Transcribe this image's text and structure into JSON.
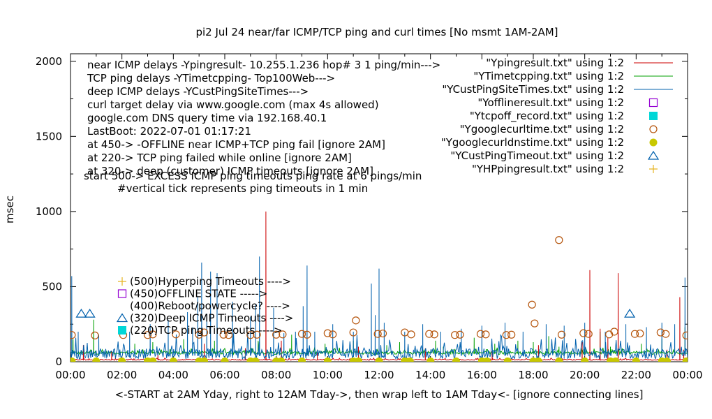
{
  "chart_data": {
    "type": "line",
    "title": "pi2  Jul 24  near/far ICMP/TCP ping and curl times [No msmt 1AM-2AM]",
    "xlabel": "<-START at 2AM Yday, right to 12AM Tday->, then wrap left to 1AM Tday<- [ignore connecting lines]",
    "ylabel": "msec",
    "xlim": [
      0,
      24
    ],
    "ylim": [
      0,
      2050
    ],
    "x_ticks": [
      {
        "v": 0,
        "label": "00:00"
      },
      {
        "v": 2,
        "label": "02:00"
      },
      {
        "v": 4,
        "label": "04:00"
      },
      {
        "v": 6,
        "label": "06:00"
      },
      {
        "v": 8,
        "label": "08:00"
      },
      {
        "v": 10,
        "label": "10:00"
      },
      {
        "v": 12,
        "label": "12:00"
      },
      {
        "v": 14,
        "label": "14:00"
      },
      {
        "v": 16,
        "label": "16:00"
      },
      {
        "v": 18,
        "label": "18:00"
      },
      {
        "v": 20,
        "label": "20:00"
      },
      {
        "v": 22,
        "label": "22:00"
      },
      {
        "v": 24,
        "label": "00:00"
      }
    ],
    "y_ticks": [
      {
        "v": 0,
        "label": "0"
      },
      {
        "v": 500,
        "label": "500"
      },
      {
        "v": 1000,
        "label": "1000"
      },
      {
        "v": 1500,
        "label": "1500"
      },
      {
        "v": 2000,
        "label": "2000"
      }
    ],
    "grid": false,
    "legend_position": "top-right",
    "info_text": [
      "near ICMP delays -Ypingresult- 10.255.1.236 hop# 3 1 ping/min--->",
      "TCP ping delays -YTimetcpping- Top100Web--->",
      "deep ICMP delays -YCustPingSiteTimes--->",
      "curl target delay via www.google.com (max 4s allowed)",
      "google.com DNS query time via 192.168.40.1",
      "LastBoot: 2022-07-01 01:17:21",
      "at 450-> -OFFLINE near ICMP+TCP ping fail [ignore 2AM]",
      "at 220-> TCP ping failed while online [ignore 2AM]",
      "at 320-> deep (customer) ICMP timeouts [ignore 2AM]",
      "start 500-> EXCESS ICMP ping timeouts ping rate at 6 pings/min",
      "#vertical tick represents ping timeouts in 1 min"
    ],
    "marker_key": [
      {
        "label": "(500)Hyperping Timeouts ---->",
        "marker": "plus",
        "color": "#e6b422"
      },
      {
        "label": "(450)OFFLINE STATE ----->",
        "marker": "open-square",
        "color": "#9400d3"
      },
      {
        "label": "(400)Reboot/powercycle? ---->",
        "marker": "none",
        "color": "#000000"
      },
      {
        "label": "(320)Deep ICMP Timeouts ---->",
        "marker": "open-triangle",
        "color": "#0060ad"
      },
      {
        "label": "(220)TCP ping Timeouts ---->",
        "marker": "filled-square",
        "color": "#00d7d7"
      }
    ],
    "series": [
      {
        "name": "\"Ypingresult.txt\" using 1:2",
        "style": "line",
        "color": "#cc0000",
        "baseline": 12,
        "noise": 6,
        "spikes": [
          [
            0.5,
            110
          ],
          [
            1.6,
            70
          ],
          [
            3.4,
            60
          ],
          [
            5.2,
            120
          ],
          [
            6.8,
            90
          ],
          [
            7.6,
            1000
          ],
          [
            8.2,
            140
          ],
          [
            9.6,
            80
          ],
          [
            11.2,
            100
          ],
          [
            13.8,
            90
          ],
          [
            16.4,
            70
          ],
          [
            18.2,
            110
          ],
          [
            19.9,
            130
          ],
          [
            20.2,
            610
          ],
          [
            20.6,
            220
          ],
          [
            20.9,
            160
          ],
          [
            21.3,
            590
          ],
          [
            23.2,
            80
          ],
          [
            23.7,
            430
          ],
          [
            23.85,
            80
          ]
        ]
      },
      {
        "name": "\"YTimetcpping.txt\" using 1:2",
        "style": "line",
        "color": "#00a000",
        "baseline": 55,
        "noise": 20,
        "spikes": [
          [
            0.1,
            150
          ],
          [
            0.9,
            280
          ],
          [
            2.5,
            120
          ],
          [
            3.2,
            130
          ],
          [
            4.4,
            150
          ],
          [
            5.6,
            140
          ],
          [
            6.3,
            100
          ],
          [
            7.3,
            140
          ],
          [
            8.6,
            180
          ],
          [
            9.9,
            120
          ],
          [
            11.0,
            140
          ],
          [
            12.3,
            110
          ],
          [
            12.8,
            130
          ],
          [
            14.2,
            140
          ],
          [
            14.5,
            100
          ],
          [
            15.7,
            160
          ],
          [
            16.5,
            120
          ],
          [
            17.4,
            140
          ],
          [
            18.0,
            130
          ],
          [
            18.6,
            170
          ],
          [
            19.0,
            100
          ],
          [
            20.6,
            200
          ],
          [
            21.0,
            100
          ],
          [
            22.2,
            120
          ],
          [
            23.0,
            150
          ],
          [
            23.9,
            230
          ]
        ]
      },
      {
        "name": "\"YCustPingSiteTimes.txt\" using 1:2",
        "style": "line",
        "color": "#0060ad",
        "baseline": 40,
        "noise": 70,
        "spikes": [
          [
            0.05,
            570
          ],
          [
            0.3,
            200
          ],
          [
            1.1,
            180
          ],
          [
            2.3,
            200
          ],
          [
            3.1,
            250
          ],
          [
            3.8,
            280
          ],
          [
            4.55,
            330
          ],
          [
            4.75,
            230
          ],
          [
            4.95,
            430
          ],
          [
            5.1,
            660
          ],
          [
            5.3,
            320
          ],
          [
            5.45,
            600
          ],
          [
            5.7,
            590
          ],
          [
            6.3,
            400
          ],
          [
            7.0,
            300
          ],
          [
            7.2,
            380
          ],
          [
            7.35,
            700
          ],
          [
            7.9,
            360
          ],
          [
            8.3,
            190
          ],
          [
            8.75,
            200
          ],
          [
            9.05,
            370
          ],
          [
            9.2,
            640
          ],
          [
            9.5,
            200
          ],
          [
            10.2,
            250
          ],
          [
            11.0,
            200
          ],
          [
            11.7,
            520
          ],
          [
            11.85,
            310
          ],
          [
            12.0,
            620
          ],
          [
            12.2,
            260
          ],
          [
            13.0,
            200
          ],
          [
            13.7,
            250
          ],
          [
            14.4,
            200
          ],
          [
            15.2,
            220
          ],
          [
            16.0,
            240
          ],
          [
            16.9,
            260
          ],
          [
            17.6,
            200
          ],
          [
            18.5,
            250
          ],
          [
            19.2,
            240
          ],
          [
            20.0,
            260
          ],
          [
            20.8,
            200
          ],
          [
            21.6,
            250
          ],
          [
            22.4,
            230
          ],
          [
            23.0,
            260
          ],
          [
            23.5,
            250
          ],
          [
            23.9,
            560
          ]
        ]
      },
      {
        "name": "\"Yofflineresult.txt\" using 1:2",
        "style": "open-square",
        "color": "#9400d3",
        "points": []
      },
      {
        "name": "\"Ytcpoff_record.txt\" using 1:2",
        "style": "filled-square",
        "color": "#00d7d7",
        "points": []
      },
      {
        "name": "\"Ygooglecurltime.txt\" using 1:2",
        "style": "open-circle",
        "color": "#b5540b",
        "points": [
          [
            0.05,
            178
          ],
          [
            0.95,
            175
          ],
          [
            2.05,
            178
          ],
          [
            3.0,
            178
          ],
          [
            3.2,
            182
          ],
          [
            4.1,
            182
          ],
          [
            5.0,
            180
          ],
          [
            5.2,
            195
          ],
          [
            5.95,
            180
          ],
          [
            6.15,
            178
          ],
          [
            7.0,
            178
          ],
          [
            7.25,
            180
          ],
          [
            8.0,
            180
          ],
          [
            8.25,
            182
          ],
          [
            9.0,
            185
          ],
          [
            9.2,
            180
          ],
          [
            10.0,
            190
          ],
          [
            10.2,
            182
          ],
          [
            11.0,
            195
          ],
          [
            11.1,
            275
          ],
          [
            11.95,
            185
          ],
          [
            12.15,
            188
          ],
          [
            13.0,
            195
          ],
          [
            13.25,
            182
          ],
          [
            13.95,
            185
          ],
          [
            14.15,
            182
          ],
          [
            14.95,
            178
          ],
          [
            15.15,
            180
          ],
          [
            15.95,
            185
          ],
          [
            16.15,
            182
          ],
          [
            16.95,
            178
          ],
          [
            17.15,
            180
          ],
          [
            17.95,
            380
          ],
          [
            18.05,
            255
          ],
          [
            19.0,
            810
          ],
          [
            19.1,
            180
          ],
          [
            19.95,
            190
          ],
          [
            20.15,
            185
          ],
          [
            20.95,
            182
          ],
          [
            21.15,
            200
          ],
          [
            21.95,
            185
          ],
          [
            22.15,
            188
          ],
          [
            22.95,
            195
          ],
          [
            23.15,
            185
          ],
          [
            23.95,
            175
          ]
        ]
      },
      {
        "name": "\"Ygooglecurldnstime.txt\" using 1:2",
        "style": "filled-circle",
        "color": "#c8c800",
        "points": [
          [
            0.05,
            3
          ],
          [
            1.0,
            3
          ],
          [
            2.0,
            3
          ],
          [
            3.0,
            3
          ],
          [
            3.2,
            3
          ],
          [
            4.0,
            3
          ],
          [
            5.0,
            3
          ],
          [
            5.2,
            3
          ],
          [
            6.0,
            3
          ],
          [
            7.0,
            3
          ],
          [
            7.2,
            3
          ],
          [
            8.0,
            3
          ],
          [
            8.2,
            3
          ],
          [
            9.0,
            3
          ],
          [
            10.0,
            3
          ],
          [
            11.0,
            3
          ],
          [
            11.2,
            3
          ],
          [
            12.0,
            3
          ],
          [
            13.0,
            3
          ],
          [
            13.2,
            3
          ],
          [
            14.0,
            3
          ],
          [
            15.0,
            3
          ],
          [
            16.0,
            3
          ],
          [
            16.2,
            3
          ],
          [
            17.0,
            3
          ],
          [
            18.0,
            3
          ],
          [
            18.2,
            3
          ],
          [
            19.0,
            3
          ],
          [
            20.0,
            3
          ],
          [
            21.0,
            3
          ],
          [
            21.2,
            3
          ],
          [
            22.0,
            3
          ],
          [
            23.0,
            3
          ],
          [
            23.2,
            3
          ],
          [
            23.95,
            3
          ]
        ]
      },
      {
        "name": "\"YCustPingTimeout.txt\" using 1:2",
        "style": "open-triangle",
        "color": "#0060ad",
        "points": [
          [
            0.42,
            320
          ],
          [
            0.75,
            320
          ],
          [
            21.75,
            320
          ]
        ]
      },
      {
        "name": "\"YHPpingresult.txt\" using 1:2",
        "style": "plus",
        "color": "#e6b422",
        "points": []
      }
    ]
  }
}
